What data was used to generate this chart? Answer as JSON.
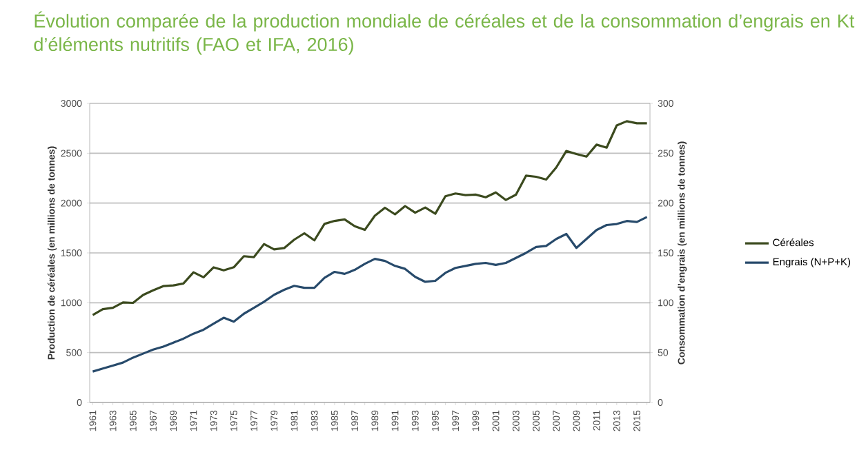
{
  "chart_data": {
    "type": "line",
    "title": "Évolution comparée de la production mondiale de céréales et de la consommation d’engrais en Kt d’éléments nutritifs (FAO et IFA, 2016)",
    "ylabel": "Production de céréales (en millions de tonnes)",
    "y2label": "Consommation d’engrais (en millions de tonnes)",
    "categories": [
      "1961",
      null,
      "1963",
      null,
      "1965",
      null,
      "1967",
      null,
      "1969",
      null,
      "1971",
      null,
      "1973",
      null,
      "1975",
      null,
      "1977",
      null,
      "1979",
      null,
      "1981",
      null,
      "1983",
      null,
      "1985",
      null,
      "1987",
      null,
      "1989",
      null,
      "1991",
      null,
      "1993",
      null,
      "1995",
      null,
      "1997",
      null,
      "1999",
      null,
      "2001",
      null,
      "2003",
      null,
      "2005",
      null,
      "2007",
      null,
      "2009",
      null,
      "2011",
      null,
      "2013",
      null,
      "2015",
      null
    ],
    "series": [
      {
        "name": "Céréales",
        "color": "#3b4a1e",
        "values": [
          877,
          936,
          949,
          1003,
          999,
          1078,
          1125,
          1167,
          1174,
          1193,
          1306,
          1255,
          1355,
          1325,
          1356,
          1467,
          1458,
          1589,
          1536,
          1549,
          1633,
          1697,
          1626,
          1791,
          1821,
          1836,
          1768,
          1731,
          1873,
          1953,
          1887,
          1970,
          1904,
          1955,
          1893,
          2069,
          2096,
          2080,
          2085,
          2058,
          2107,
          2031,
          2084,
          2275,
          2264,
          2236,
          2357,
          2522,
          2492,
          2466,
          2586,
          2556,
          2779,
          2821,
          2800,
          2800
        ]
      },
      {
        "name": "Engrais (N+P+K)",
        "color": "#274a6b",
        "axis": "y2",
        "values": [
          31,
          34,
          37,
          40,
          45,
          49,
          53,
          56,
          60,
          64,
          69,
          73,
          79,
          85,
          81,
          89,
          95,
          101,
          108,
          113,
          117,
          115,
          115,
          125,
          131,
          129,
          133,
          139,
          144,
          142,
          137,
          134,
          126,
          121,
          122,
          130,
          135,
          137,
          139,
          140,
          138,
          140,
          145,
          150,
          156,
          157,
          164,
          169,
          155,
          164,
          173,
          178,
          179,
          182,
          181,
          186
        ]
      }
    ],
    "ylim": [
      0,
      3000
    ],
    "yticks": [
      0,
      500,
      1000,
      1500,
      2000,
      2500,
      3000
    ],
    "y2lim": [
      0,
      300
    ],
    "y2ticks": [
      0,
      50,
      100,
      150,
      200,
      250,
      300
    ],
    "grid": "y",
    "legend": "right",
    "marker": "none",
    "line_style": "solid"
  }
}
